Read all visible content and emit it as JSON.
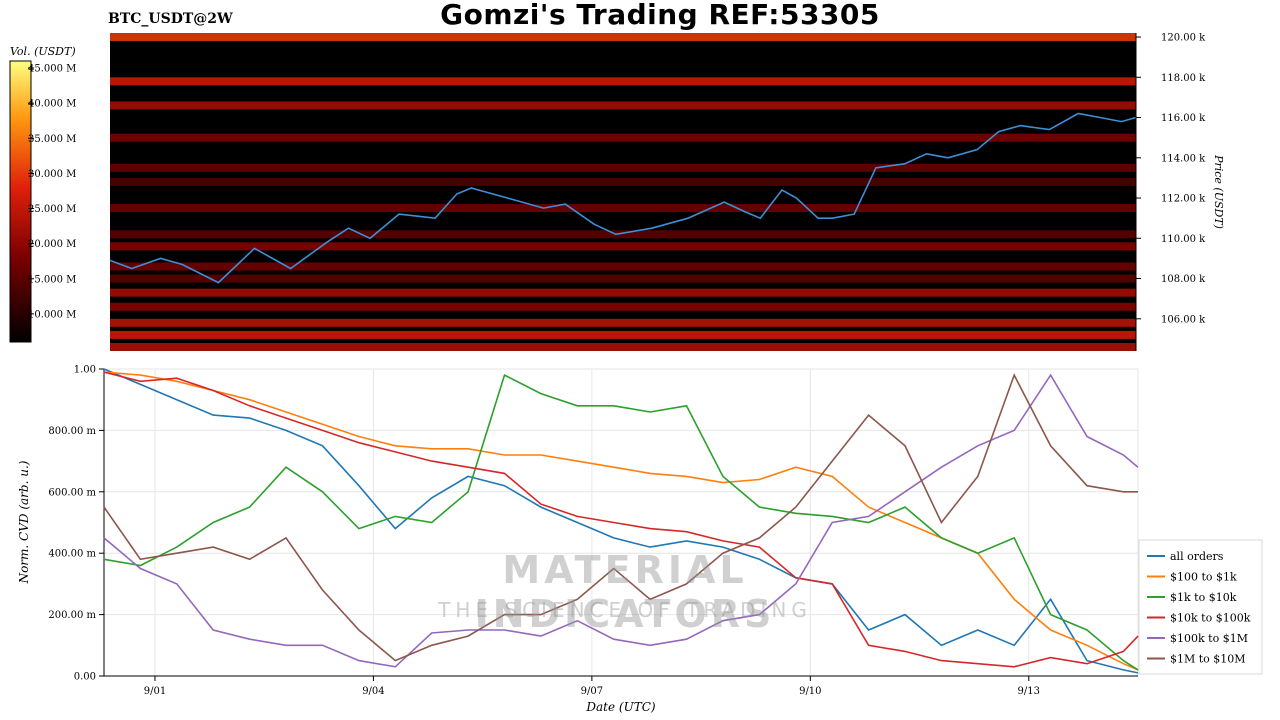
{
  "page_title": "Gomzi's Trading REF:53305",
  "symbol": "BTC_USDT@2W",
  "watermark": {
    "main": "MATERIAL INDICATORS",
    "sub": "THE SCIENCE OF TRADING"
  },
  "chart_data": [
    {
      "type": "heatmap",
      "title": "",
      "ylabel": "Price (USDT)",
      "ylim": [
        104400,
        120200
      ],
      "yticks": [
        {
          "value": 106000,
          "label": "106.00 k"
        },
        {
          "value": 108000,
          "label": "108.00 k"
        },
        {
          "value": 110000,
          "label": "110.00 k"
        },
        {
          "value": 112000,
          "label": "112.00 k"
        },
        {
          "value": 114000,
          "label": "114.00 k"
        },
        {
          "value": 116000,
          "label": "116.00 k"
        },
        {
          "value": 118000,
          "label": "118.00 k"
        },
        {
          "value": 120000,
          "label": "120.00 k"
        }
      ],
      "colorbar": {
        "label": "Vol. (USDT)",
        "range": [
          6000000,
          46000000
        ],
        "ticks": [
          {
            "value": 10000000,
            "label": "10.000 M"
          },
          {
            "value": 15000000,
            "label": "15.000 M"
          },
          {
            "value": 20000000,
            "label": "20.000 M"
          },
          {
            "value": 25000000,
            "label": "25.000 M"
          },
          {
            "value": 30000000,
            "label": "30.000 M"
          },
          {
            "value": 35000000,
            "label": "35.000 M"
          },
          {
            "value": 40000000,
            "label": "40.000 M"
          },
          {
            "value": 45000000,
            "label": "45.000 M"
          }
        ]
      },
      "price_line": {
        "x": [
          0,
          0.3,
          0.7,
          1.0,
          1.5,
          2.0,
          2.5,
          3.0,
          3.3,
          3.6,
          4.0,
          4.5,
          4.8,
          5.0,
          5.5,
          6.0,
          6.3,
          6.7,
          7.0,
          7.5,
          8.0,
          8.5,
          8.8,
          9.0,
          9.3,
          9.5,
          9.8,
          10.0,
          10.3,
          10.6,
          11.0,
          11.3,
          11.6,
          12.0,
          12.3,
          12.6,
          13.0,
          13.4,
          13.7,
          14.0,
          14.2
        ],
        "y": [
          108900,
          108500,
          109000,
          108700,
          107800,
          109500,
          108500,
          109800,
          110500,
          110000,
          111200,
          111000,
          112200,
          112500,
          112000,
          111500,
          111700,
          110700,
          110200,
          110500,
          111000,
          111800,
          111300,
          111000,
          112400,
          112000,
          111000,
          111000,
          111200,
          113500,
          113700,
          114200,
          114000,
          114400,
          115300,
          115600,
          115400,
          116200,
          116000,
          115800,
          116000
        ]
      },
      "bands": [
        {
          "price": 120000,
          "vol": 30000000
        },
        {
          "price": 117800,
          "vol": 26000000
        },
        {
          "price": 116600,
          "vol": 22000000
        },
        {
          "price": 115000,
          "vol": 18000000
        },
        {
          "price": 113500,
          "vol": 16000000
        },
        {
          "price": 112800,
          "vol": 14000000
        },
        {
          "price": 111500,
          "vol": 17000000
        },
        {
          "price": 110200,
          "vol": 15000000
        },
        {
          "price": 109600,
          "vol": 19000000
        },
        {
          "price": 108600,
          "vol": 17000000
        },
        {
          "price": 108000,
          "vol": 15000000
        },
        {
          "price": 107300,
          "vol": 22000000
        },
        {
          "price": 106600,
          "vol": 19000000
        },
        {
          "price": 105800,
          "vol": 24000000
        },
        {
          "price": 105200,
          "vol": 26000000
        },
        {
          "price": 104600,
          "vol": 23000000
        }
      ]
    },
    {
      "type": "line",
      "title": "",
      "xlabel": "Date (UTC)",
      "ylabel": "Norm. CVD (arb. u.)",
      "xlim": [
        0,
        14.2
      ],
      "ylim": [
        0,
        1
      ],
      "xticks": [
        {
          "value": 0.7,
          "label": "9/01"
        },
        {
          "value": 3.7,
          "label": "9/04"
        },
        {
          "value": 6.7,
          "label": "9/07"
        },
        {
          "value": 9.7,
          "label": "9/10"
        },
        {
          "value": 12.7,
          "label": "9/13"
        }
      ],
      "yticks": [
        {
          "value": 0,
          "label": "0.00"
        },
        {
          "value": 0.2,
          "label": "200.00 m"
        },
        {
          "value": 0.4,
          "label": "400.00 m"
        },
        {
          "value": 0.6,
          "label": "600.00 m"
        },
        {
          "value": 0.8,
          "label": "800.00 m"
        },
        {
          "value": 1.0,
          "label": "1.00"
        }
      ],
      "x": [
        0,
        0.5,
        1.0,
        1.5,
        2.0,
        2.5,
        3.0,
        3.5,
        4.0,
        4.5,
        5.0,
        5.5,
        6.0,
        6.5,
        7.0,
        7.5,
        8.0,
        8.5,
        9.0,
        9.5,
        10.0,
        10.5,
        11.0,
        11.5,
        12.0,
        12.5,
        13.0,
        13.5,
        14.0,
        14.2
      ],
      "legend_position": "bottom-right",
      "series": [
        {
          "name": "all orders",
          "color": "#1f77b4",
          "values": [
            1.0,
            0.95,
            0.9,
            0.85,
            0.84,
            0.8,
            0.75,
            0.62,
            0.48,
            0.58,
            0.65,
            0.62,
            0.55,
            0.5,
            0.45,
            0.42,
            0.44,
            0.42,
            0.38,
            0.32,
            0.3,
            0.15,
            0.2,
            0.1,
            0.15,
            0.1,
            0.25,
            0.05,
            0.02,
            0.01
          ]
        },
        {
          "name": "$100 to $1k",
          "color": "#ff7f0e",
          "values": [
            0.99,
            0.98,
            0.96,
            0.93,
            0.9,
            0.86,
            0.82,
            0.78,
            0.75,
            0.74,
            0.74,
            0.72,
            0.72,
            0.7,
            0.68,
            0.66,
            0.65,
            0.63,
            0.64,
            0.68,
            0.65,
            0.55,
            0.5,
            0.45,
            0.4,
            0.25,
            0.15,
            0.1,
            0.04,
            0.02
          ]
        },
        {
          "name": "$1k to $10k",
          "color": "#2ca02c",
          "values": [
            0.38,
            0.36,
            0.42,
            0.5,
            0.55,
            0.68,
            0.6,
            0.48,
            0.52,
            0.5,
            0.6,
            0.98,
            0.92,
            0.88,
            0.88,
            0.86,
            0.88,
            0.65,
            0.55,
            0.53,
            0.52,
            0.5,
            0.55,
            0.45,
            0.4,
            0.45,
            0.2,
            0.15,
            0.05,
            0.02
          ]
        },
        {
          "name": "$10k to $100k",
          "color": "#d62728",
          "values": [
            0.99,
            0.96,
            0.97,
            0.93,
            0.88,
            0.84,
            0.8,
            0.76,
            0.73,
            0.7,
            0.68,
            0.66,
            0.56,
            0.52,
            0.5,
            0.48,
            0.47,
            0.44,
            0.42,
            0.32,
            0.3,
            0.1,
            0.08,
            0.05,
            0.04,
            0.03,
            0.06,
            0.04,
            0.08,
            0.13
          ]
        },
        {
          "name": "$100k to $1M",
          "color": "#9467bd",
          "values": [
            0.45,
            0.35,
            0.3,
            0.15,
            0.12,
            0.1,
            0.1,
            0.05,
            0.03,
            0.14,
            0.15,
            0.15,
            0.13,
            0.18,
            0.12,
            0.1,
            0.12,
            0.18,
            0.2,
            0.3,
            0.5,
            0.52,
            0.6,
            0.68,
            0.75,
            0.8,
            0.98,
            0.78,
            0.72,
            0.68
          ]
        },
        {
          "name": "$1M to $10M",
          "color": "#8c564b",
          "values": [
            0.55,
            0.38,
            0.4,
            0.42,
            0.38,
            0.45,
            0.28,
            0.15,
            0.05,
            0.1,
            0.13,
            0.2,
            0.2,
            0.25,
            0.35,
            0.25,
            0.3,
            0.4,
            0.45,
            0.55,
            0.7,
            0.85,
            0.75,
            0.5,
            0.65,
            0.98,
            0.75,
            0.62,
            0.6,
            0.6
          ]
        }
      ]
    }
  ]
}
